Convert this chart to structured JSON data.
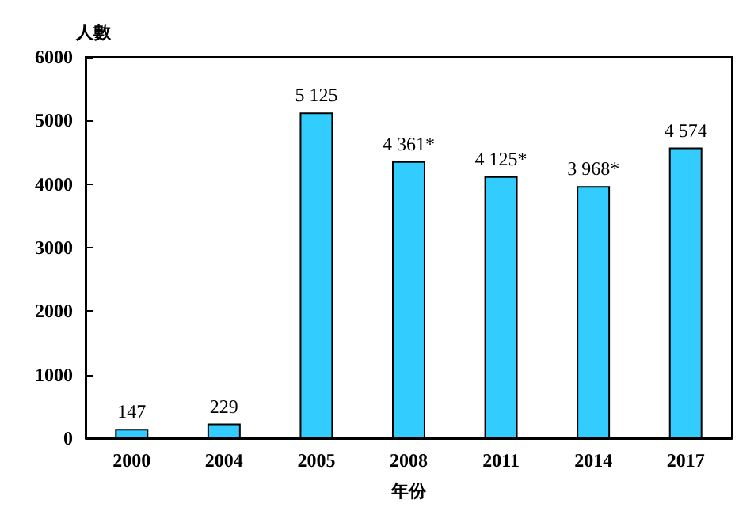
{
  "chart_data": {
    "type": "bar",
    "ylabel": "人數",
    "xlabel": "年份",
    "categories": [
      "2000",
      "2004",
      "2005",
      "2008",
      "2011",
      "2014",
      "2017"
    ],
    "values": [
      147,
      229,
      5125,
      4361,
      4125,
      3968,
      4574
    ],
    "value_labels": [
      "147",
      "229",
      "5 125",
      "4 361*",
      "4 125*",
      "3 968*",
      "4 574"
    ],
    "color": "#33ccff",
    "ylim": [
      0,
      6000
    ],
    "yticks": [
      0,
      1000,
      2000,
      3000,
      4000,
      5000,
      6000
    ],
    "grid": false
  }
}
